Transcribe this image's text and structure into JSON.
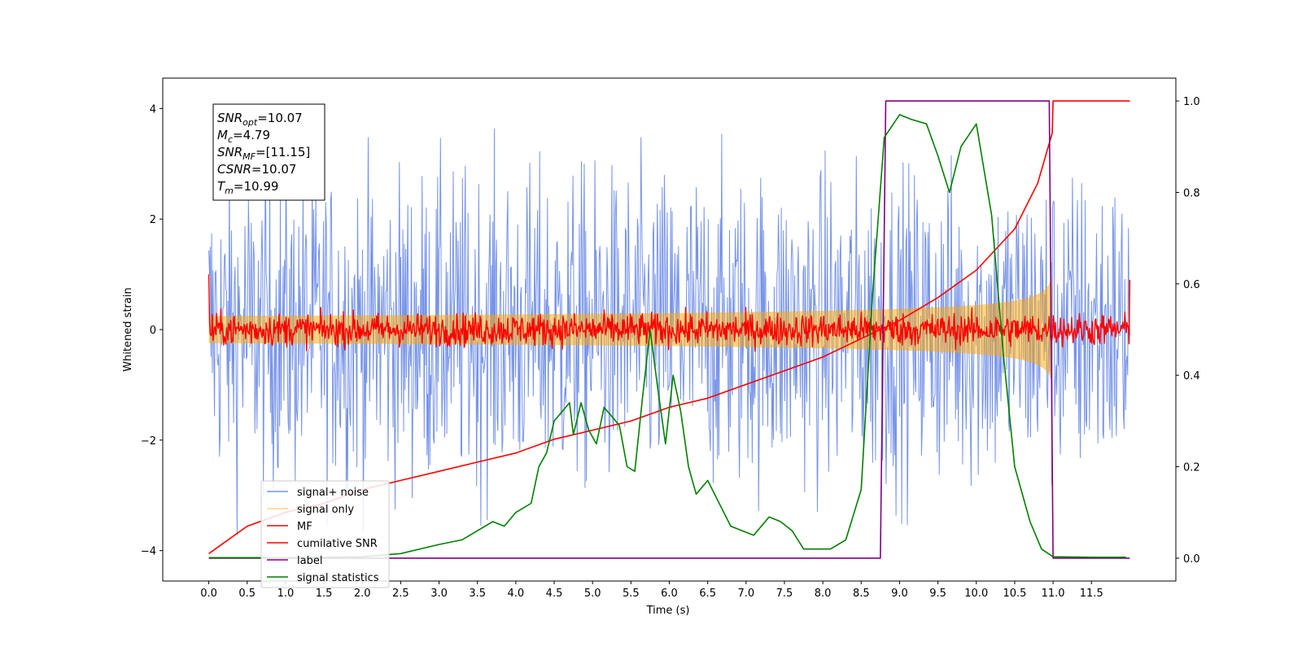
{
  "chart_data": {
    "type": "line",
    "xlabel": "Time (s)",
    "ylabel": "Whitened strain",
    "xlim": [
      -0.6,
      12.6
    ],
    "ylim": [
      -4.55,
      4.55
    ],
    "y2lim": [
      -0.05,
      1.05
    ],
    "x_ticks": [
      0.0,
      0.5,
      1.0,
      1.5,
      2.0,
      2.5,
      3.0,
      3.5,
      4.0,
      4.5,
      5.0,
      5.5,
      6.0,
      6.5,
      7.0,
      7.5,
      8.0,
      8.5,
      9.0,
      9.5,
      10.0,
      10.5,
      11.0,
      11.5
    ],
    "x_tick_labels": [
      "0.0",
      "0.5",
      "1.0",
      "1.5",
      "2.0",
      "2.5",
      "3.0",
      "3.5",
      "4.0",
      "4.5",
      "5.0",
      "5.5",
      "6.0",
      "6.5",
      "7.0",
      "7.5",
      "8.0",
      "8.5",
      "9.0",
      "9.5",
      "10.0",
      "10.5",
      "11.0",
      "11.5"
    ],
    "y_ticks": [
      -4,
      -2,
      0,
      2,
      4
    ],
    "y_tick_labels": [
      "−4",
      "−2",
      "0",
      "2",
      "4"
    ],
    "y2_ticks": [
      0.0,
      0.2,
      0.4,
      0.6,
      0.8,
      1.0
    ],
    "y2_tick_labels": [
      "0.0",
      "0.2",
      "0.4",
      "0.6",
      "0.8",
      "1.0"
    ],
    "legend_position": "lower-left",
    "info_box": {
      "snr_opt": {
        "main": "SNR",
        "sub": "opt",
        "value": "=10.07"
      },
      "mc": {
        "main": "M",
        "sub": "c",
        "value": "=4.79"
      },
      "snr_mf": {
        "main": "SNR",
        "sub": "MF",
        "value": "=[11.15]"
      },
      "csnr": {
        "main": "CSNR",
        "sub": "",
        "value": "=10.07"
      },
      "tm": {
        "main": "T",
        "sub": "m",
        "value": "=10.99"
      }
    },
    "series": [
      {
        "name": "signal+ noise",
        "color": "#4169e1",
        "axis": "left",
        "style": "noise",
        "x_range": [
          0.0,
          12.0
        ],
        "amplitude": 3.9
      },
      {
        "name": "signal only",
        "color": "#ffa500",
        "axis": "left",
        "style": "chirp",
        "x_range": [
          0.0,
          10.99
        ],
        "amplitude_end": 0.95
      },
      {
        "name": "MF",
        "color": "#ff0000",
        "axis": "left",
        "style": "noise",
        "x_range": [
          0.0,
          12.0
        ],
        "amplitude": 0.4
      },
      {
        "name": "cumilative SNR",
        "color": "#ff0000",
        "axis": "right",
        "style": "line",
        "x": [
          0.0,
          0.5,
          1.0,
          1.5,
          2.0,
          2.5,
          3.0,
          3.5,
          4.0,
          4.5,
          5.0,
          5.5,
          6.0,
          6.5,
          7.0,
          7.5,
          8.0,
          8.5,
          9.0,
          9.5,
          10.0,
          10.5,
          10.8,
          10.99,
          11.0,
          12.0
        ],
        "y": [
          0.01,
          0.07,
          0.1,
          0.12,
          0.15,
          0.17,
          0.19,
          0.21,
          0.23,
          0.26,
          0.28,
          0.3,
          0.33,
          0.35,
          0.38,
          0.41,
          0.44,
          0.48,
          0.52,
          0.57,
          0.63,
          0.72,
          0.82,
          0.93,
          1.0,
          1.0
        ]
      },
      {
        "name": "label",
        "color": "#800080",
        "axis": "right",
        "style": "line",
        "x": [
          0.0,
          8.75,
          8.82,
          10.95,
          11.0,
          12.0
        ],
        "y": [
          0.0,
          0.0,
          1.0,
          1.0,
          0.0,
          0.0
        ]
      },
      {
        "name": "signal statistics",
        "color": "#008000",
        "axis": "right",
        "style": "line",
        "x": [
          0.0,
          0.5,
          1.0,
          1.5,
          2.0,
          2.5,
          3.0,
          3.3,
          3.5,
          3.7,
          3.85,
          4.0,
          4.2,
          4.3,
          4.4,
          4.5,
          4.6,
          4.7,
          4.75,
          4.85,
          4.95,
          5.05,
          5.15,
          5.25,
          5.35,
          5.45,
          5.55,
          5.65,
          5.75,
          5.85,
          5.95,
          6.05,
          6.15,
          6.25,
          6.35,
          6.5,
          6.65,
          6.8,
          6.95,
          7.1,
          7.3,
          7.45,
          7.6,
          7.75,
          7.9,
          8.1,
          8.3,
          8.5,
          8.65,
          8.8,
          9.0,
          9.15,
          9.35,
          9.5,
          9.65,
          9.8,
          10.0,
          10.2,
          10.35,
          10.5,
          10.7,
          10.85,
          11.0,
          11.5,
          11.95
        ],
        "y": [
          0.001,
          0.001,
          0.001,
          0.002,
          0.003,
          0.01,
          0.03,
          0.04,
          0.06,
          0.08,
          0.07,
          0.1,
          0.12,
          0.2,
          0.23,
          0.3,
          0.32,
          0.34,
          0.27,
          0.34,
          0.28,
          0.25,
          0.33,
          0.31,
          0.29,
          0.2,
          0.19,
          0.35,
          0.5,
          0.37,
          0.25,
          0.4,
          0.32,
          0.2,
          0.14,
          0.17,
          0.12,
          0.07,
          0.06,
          0.05,
          0.09,
          0.08,
          0.06,
          0.02,
          0.02,
          0.02,
          0.04,
          0.15,
          0.58,
          0.92,
          0.97,
          0.96,
          0.95,
          0.88,
          0.8,
          0.9,
          0.95,
          0.75,
          0.45,
          0.2,
          0.08,
          0.02,
          0.003,
          0.002,
          0.002
        ]
      }
    ]
  }
}
